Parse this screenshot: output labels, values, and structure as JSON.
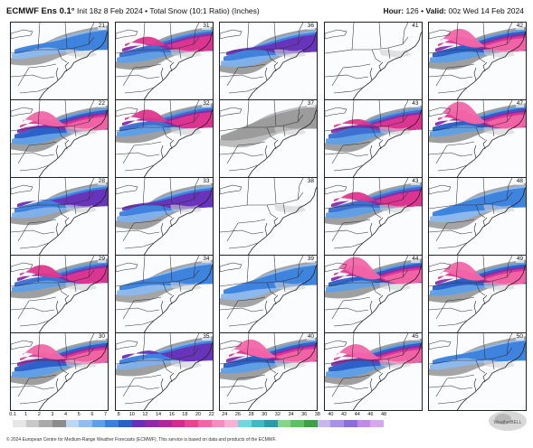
{
  "header": {
    "model": "ECMWF Ens 0.1°",
    "init": "Init 18z 8 Feb 2024",
    "separator": "•",
    "product": "Total Snow (10:1 Ratio) (Inches)",
    "hour_label": "Hour:",
    "hour_value": "126",
    "valid_label": "Valid:",
    "valid_value": "00z Wed 14 Feb 2024"
  },
  "panels": [
    {
      "member": "21",
      "level": 2
    },
    {
      "member": "31",
      "level": 4
    },
    {
      "member": "36",
      "level": 3
    },
    {
      "member": "41",
      "level": 0
    },
    {
      "member": "42",
      "level": 5
    },
    {
      "member": "22",
      "level": 5
    },
    {
      "member": "32",
      "level": 4
    },
    {
      "member": "37",
      "level": 1
    },
    {
      "member": "43",
      "level": 4
    },
    {
      "member": "47",
      "level": 5
    },
    {
      "member": "28",
      "level": 3
    },
    {
      "member": "33",
      "level": 3
    },
    {
      "member": "38",
      "level": 0
    },
    {
      "member": "43",
      "level": 4
    },
    {
      "member": "48",
      "level": 2
    },
    {
      "member": "29",
      "level": 4
    },
    {
      "member": "34",
      "level": 2
    },
    {
      "member": "39",
      "level": 2
    },
    {
      "member": "44",
      "level": 5
    },
    {
      "member": "49",
      "level": 5
    },
    {
      "member": "30",
      "level": 5
    },
    {
      "member": "35",
      "level": 3
    },
    {
      "member": "40",
      "level": 5
    },
    {
      "member": "45",
      "level": 5
    },
    {
      "member": "50",
      "level": 2
    }
  ],
  "legend": {
    "ticks": [
      "0.1",
      "1",
      "2",
      "3",
      "4",
      "5",
      "6",
      "7",
      "8",
      "10",
      "12",
      "14",
      "16",
      "18",
      "20",
      "22",
      "24",
      "26",
      "28",
      "30",
      "32",
      "34",
      "36",
      "38",
      "40",
      "42",
      "44",
      "46",
      "48"
    ],
    "colors": [
      "#e6e6e6",
      "#c8c8c8",
      "#a9a9a9",
      "#8c8c8c",
      "#bcd7f5",
      "#90bdf0",
      "#5e9fe8",
      "#3a7fdd",
      "#2a5ec8",
      "#6a2fb8",
      "#8d2aa8",
      "#b0279a",
      "#d42a8d",
      "#e8448f",
      "#f266a8",
      "#f58cc0",
      "#f7b0d6",
      "#6ed8de",
      "#3fbac4",
      "#2c9aa8",
      "#88d58a",
      "#5fbf62",
      "#3f9f46",
      "#c8b6f0",
      "#a890e4",
      "#8a6fd6",
      "#c08ae6",
      "#d6a8ee"
    ]
  },
  "footer": "© 2024 European Centre for Medium-Range Weather Forecasts (ECMWF). This service is based on data and products of the ECMWF.",
  "logo_text": "WeatherBELL",
  "colors": {
    "gray": "#9a9a9a",
    "blue": "#3a7fdd",
    "purple": "#6a2fb8",
    "magenta": "#e0368f"
  }
}
